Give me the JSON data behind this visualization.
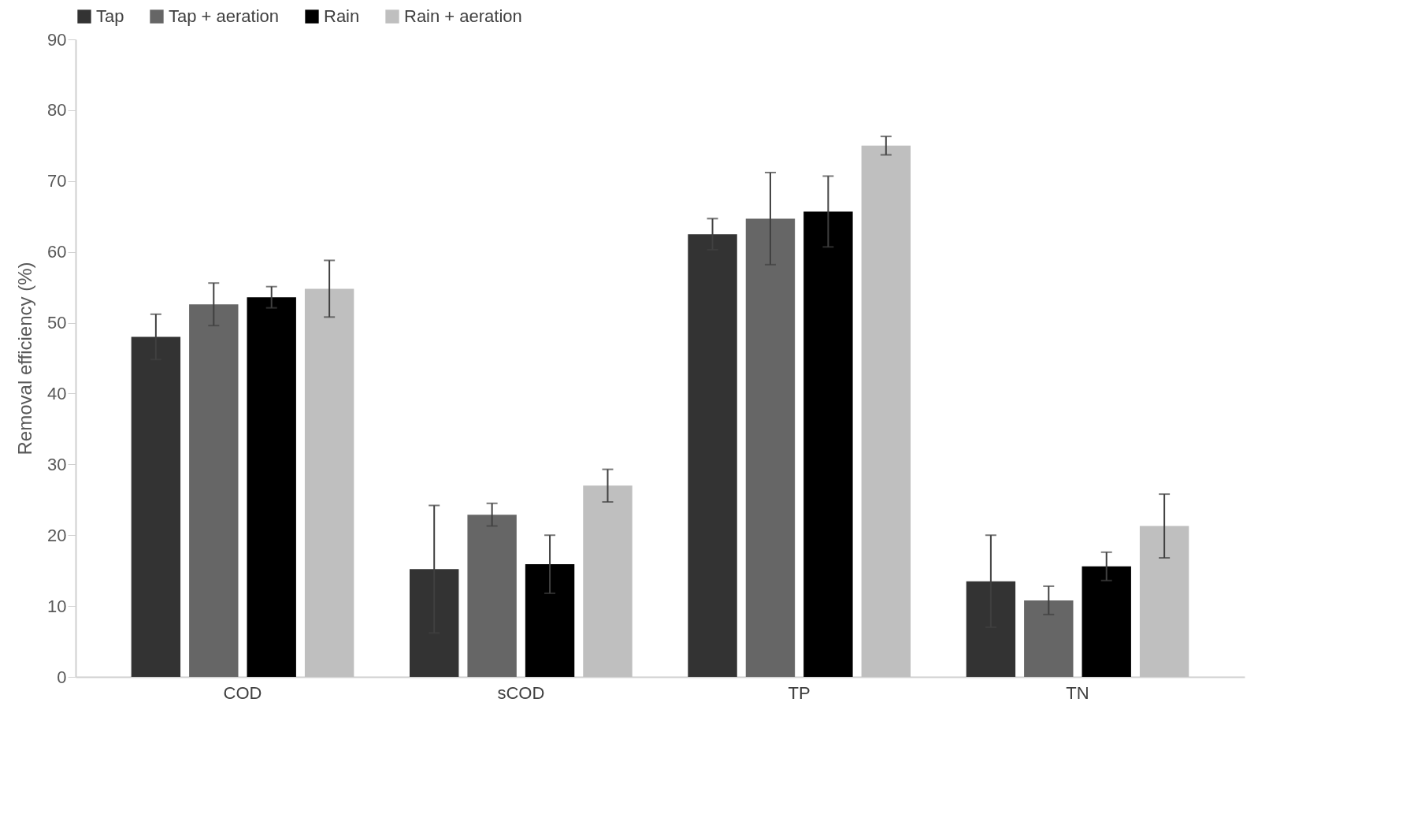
{
  "chart_data": {
    "type": "bar",
    "ylabel": "Removal efficiency (%)",
    "categories": [
      "COD",
      "sCOD",
      "TP",
      "TN"
    ],
    "series": [
      {
        "name": "Tap",
        "color": "#333333",
        "values": [
          48,
          15.2,
          62.5,
          13.5
        ],
        "errors": [
          3.2,
          9,
          2.2,
          6.5
        ]
      },
      {
        "name": "Tap + aeration",
        "color": "#666666",
        "values": [
          52.6,
          22.9,
          64.7,
          10.8
        ],
        "errors": [
          3,
          1.6,
          6.5,
          2
        ]
      },
      {
        "name": "Rain",
        "color": "#000000",
        "values": [
          53.6,
          15.9,
          65.7,
          15.6
        ],
        "errors": [
          1.5,
          4.1,
          5,
          2
        ]
      },
      {
        "name": "Rain + aeration",
        "color": "#bfbfbf",
        "values": [
          54.8,
          27,
          75,
          21.3
        ],
        "errors": [
          4,
          2.3,
          1.3,
          4.5
        ]
      }
    ],
    "ylim": [
      0,
      90
    ],
    "yticks": [
      0,
      10,
      20,
      30,
      40,
      50,
      60,
      70,
      80,
      90
    ],
    "grid": false,
    "legend": "top"
  }
}
